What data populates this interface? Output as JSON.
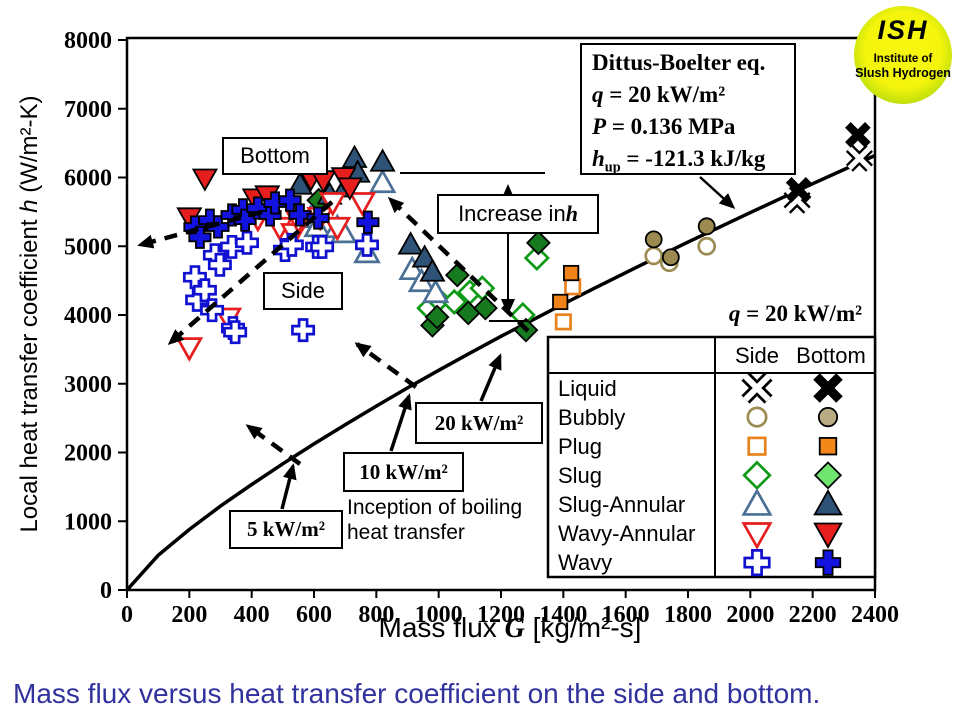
{
  "caption": {
    "text": "Mass flux versus heat transfer coefficient on the side and bottom."
  },
  "logo": {
    "acronym": "ISH",
    "line1": "Institute of",
    "line2": "Slush Hydrogen"
  },
  "axes": {
    "y_title_prefix": "Local heat transfer coefficient ",
    "y_title_var": "h",
    "y_title_suffix": " (W/m²-K)",
    "x_title_prefix": "Mass flux ",
    "x_title_var": "G",
    "x_title_suffix": " [kg/m²-s]",
    "y_ticks": [
      "0",
      "1000",
      "2000",
      "3000",
      "4000",
      "5000",
      "6000",
      "7000",
      "8000"
    ],
    "x_ticks": [
      "0",
      "200",
      "400",
      "600",
      "800",
      "1000",
      "1200",
      "1400",
      "1600",
      "1800",
      "2000",
      "2200",
      "2400"
    ]
  },
  "annotations": {
    "bottom_label": "Bottom",
    "side_label": "Side",
    "increase_prefix": "Increase in ",
    "increase_var": "h",
    "dittus_line1": "Dittus-Boelter eq.",
    "dittus_q_var": "q",
    "dittus_q_rest": " = 20 kW/m²",
    "dittus_p_var": "P",
    "dittus_p_rest": " = 0.136 MPa",
    "dittus_h_var": "h",
    "dittus_h_sub": "up",
    "dittus_h_rest": " = -121.3 kJ/kg",
    "q20_var": "q",
    "q20_rest": " = 20 kW/m²",
    "flux20": "20 kW/m²",
    "flux10": "10 kW/m²",
    "flux5": "5 kW/m²",
    "inception_line1": "Inception of boiling",
    "inception_line2": "heat transfer"
  },
  "legend": {
    "col_side": "Side",
    "col_bottom": "Bottom",
    "rows": [
      {
        "label": "Liquid",
        "shape": "x",
        "side": {
          "mode": "open",
          "color": "#000000"
        },
        "bottom": {
          "mode": "filled",
          "color": "#000000",
          "fill": "#000000"
        }
      },
      {
        "label": "Bubbly",
        "shape": "circle",
        "side": {
          "mode": "open",
          "color": "#9c8c52"
        },
        "bottom": {
          "mode": "filled",
          "color": "#9c8c52",
          "fill": "#b9ab84"
        }
      },
      {
        "label": "Plug",
        "shape": "square",
        "side": {
          "mode": "open",
          "color": "#e8821d"
        },
        "bottom": {
          "mode": "filled",
          "color": "#e8821d",
          "fill": "#f2881a"
        }
      },
      {
        "label": "Slug",
        "shape": "diamond",
        "side": {
          "mode": "open",
          "color": "#0e9a16"
        },
        "bottom": {
          "mode": "filled",
          "color": "#0e9a16",
          "fill": "#6fe56f"
        }
      },
      {
        "label": "Slug-Annular",
        "shape": "triangle-up",
        "side": {
          "mode": "open",
          "color": "#4a7096"
        },
        "bottom": {
          "mode": "filled",
          "color": "#4a7096",
          "fill": "#2e5377"
        }
      },
      {
        "label": "Wavy-Annular",
        "shape": "triangle-down",
        "side": {
          "mode": "open",
          "color": "#e61e1e"
        },
        "bottom": {
          "mode": "filled",
          "color": "#e61e1e",
          "fill": "#e61e1e"
        }
      },
      {
        "label": "Wavy",
        "shape": "cross",
        "side": {
          "mode": "open",
          "color": "#1010d0"
        },
        "bottom": {
          "mode": "filled",
          "color": "#1010d0",
          "fill": "#1313e0"
        }
      }
    ]
  },
  "colors": {
    "curve": "#000000",
    "caption": "#31319e",
    "wavy_blue": "#1010d0",
    "red": "#e61e1e",
    "slug_annular_open": "#4a7096",
    "slug_annular_filled": "#2e5377",
    "green_open": "#0e9a16",
    "green_filled": "#187a1f",
    "orange": "#e8821d",
    "tan": "#9c8c52",
    "logo_yellow": "#f4f40c",
    "logo_green": "#8cc70d"
  },
  "chart_data": {
    "type": "scatter",
    "title": "",
    "xlabel": "Mass flux G [kg/m²-s]",
    "ylabel": "Local heat transfer coefficient h (W/m²-K)",
    "xlim": [
      0,
      2400
    ],
    "ylim": [
      0,
      8000
    ],
    "grid": false,
    "legend_position": "inside lower right",
    "curve": {
      "name": "Dittus-Boelter eq. (q = 20 kW/m², P = 0.136 MPa, hup = -121.3 kJ/kg)",
      "points": [
        [
          0,
          0
        ],
        [
          100,
          505
        ],
        [
          200,
          880
        ],
        [
          300,
          1220
        ],
        [
          400,
          1535
        ],
        [
          500,
          1835
        ],
        [
          600,
          2125
        ],
        [
          700,
          2405
        ],
        [
          800,
          2675
        ],
        [
          900,
          2940
        ],
        [
          1000,
          3195
        ],
        [
          1100,
          3445
        ],
        [
          1200,
          3690
        ],
        [
          1300,
          3925
        ],
        [
          1400,
          4160
        ],
        [
          1500,
          4390
        ],
        [
          1600,
          4615
        ],
        [
          1700,
          4840
        ],
        [
          1800,
          5060
        ],
        [
          1900,
          5275
        ],
        [
          2000,
          5490
        ],
        [
          2100,
          5700
        ],
        [
          2200,
          5910
        ],
        [
          2300,
          6115
        ],
        [
          2400,
          6320
        ]
      ]
    },
    "series": [
      {
        "name": "liquid-side",
        "label": "Liquid (side)",
        "shape": "x",
        "mode": "open",
        "color": "#000000",
        "points": [
          [
            2150,
            5670
          ],
          [
            2350,
            6280
          ]
        ]
      },
      {
        "name": "liquid-bottom",
        "label": "Liquid (bottom)",
        "shape": "x",
        "mode": "filled",
        "color": "#000000",
        "fill": "#000000",
        "points": [
          [
            2155,
            5820
          ],
          [
            2345,
            6620
          ]
        ]
      },
      {
        "name": "bubbly-side",
        "label": "Bubbly (side)",
        "shape": "circle",
        "mode": "open",
        "color": "#9c8c52",
        "points": [
          [
            1690,
            4860
          ],
          [
            1740,
            4760
          ],
          [
            1860,
            5000
          ]
        ]
      },
      {
        "name": "bubbly-bottom",
        "label": "Bubbly (bottom)",
        "shape": "circle",
        "mode": "filled",
        "color": "#9c8c52",
        "fill": "#9c8a50",
        "points": [
          [
            1690,
            5100
          ],
          [
            1745,
            4840
          ],
          [
            1860,
            5290
          ]
        ]
      },
      {
        "name": "plug-side",
        "label": "Plug (side)",
        "shape": "square",
        "mode": "open",
        "color": "#e8821d",
        "points": [
          [
            1400,
            3900
          ],
          [
            1430,
            4410
          ]
        ]
      },
      {
        "name": "plug-bottom",
        "label": "Plug (bottom)",
        "shape": "square",
        "mode": "filled",
        "color": "#e8821d",
        "fill": "#ef8317",
        "points": [
          [
            1390,
            4190
          ],
          [
            1425,
            4610
          ]
        ]
      },
      {
        "name": "slug-side",
        "label": "Slug (side)",
        "shape": "diamond",
        "mode": "open",
        "color": "#0e9a16",
        "points": [
          [
            970,
            4100
          ],
          [
            1000,
            4220
          ],
          [
            1050,
            4190
          ],
          [
            1100,
            4330
          ],
          [
            1140,
            4390
          ],
          [
            1270,
            4000
          ],
          [
            1315,
            4830
          ]
        ]
      },
      {
        "name": "slug-bottom",
        "label": "Slug (bottom)",
        "shape": "diamond",
        "mode": "filled",
        "color": "#0e9a16",
        "fill": "#187a1f",
        "points": [
          [
            615,
            5670
          ],
          [
            980,
            3850
          ],
          [
            995,
            3970
          ],
          [
            1060,
            4580
          ],
          [
            1095,
            4030
          ],
          [
            1150,
            4100
          ],
          [
            1280,
            3780
          ],
          [
            1320,
            5050
          ]
        ]
      },
      {
        "name": "slug-annular-side",
        "label": "Slug-Annular (side)",
        "shape": "triangle-up",
        "mode": "open",
        "color": "#4a7096",
        "points": [
          [
            590,
            5410
          ],
          [
            610,
            5280
          ],
          [
            675,
            5265
          ],
          [
            695,
            5190
          ],
          [
            770,
            4900
          ],
          [
            820,
            5920
          ],
          [
            915,
            4655
          ],
          [
            945,
            4480
          ],
          [
            990,
            4320
          ]
        ]
      },
      {
        "name": "slug-annular-bottom",
        "label": "Slug-Annular (bottom)",
        "shape": "triangle-up",
        "mode": "filled",
        "color": "#4a7096",
        "fill": "#2e5377",
        "points": [
          [
            555,
            5890
          ],
          [
            650,
            5745
          ],
          [
            700,
            5850
          ],
          [
            730,
            6280
          ],
          [
            740,
            6065
          ],
          [
            820,
            6225
          ],
          [
            910,
            5020
          ],
          [
            955,
            4830
          ],
          [
            980,
            4625
          ]
        ]
      },
      {
        "name": "wavy-annular-side",
        "label": "Wavy-Annular (side)",
        "shape": "triangle-down",
        "mode": "open",
        "color": "#e61e1e",
        "points": [
          [
            200,
            3530
          ],
          [
            325,
            3960
          ],
          [
            420,
            5410
          ],
          [
            490,
            5280
          ],
          [
            535,
            5190
          ],
          [
            550,
            5380
          ],
          [
            620,
            5425
          ],
          [
            660,
            5640
          ],
          [
            675,
            5280
          ],
          [
            755,
            5640
          ]
        ]
      },
      {
        "name": "wavy-annular-bottom",
        "label": "Wavy-Annular (bottom)",
        "shape": "triangle-down",
        "mode": "filled",
        "color": "#e61e1e",
        "fill": "#e61e1e",
        "points": [
          [
            200,
            5425
          ],
          [
            250,
            5990
          ],
          [
            410,
            5700
          ],
          [
            450,
            5745
          ],
          [
            590,
            5990
          ],
          [
            630,
            5965
          ],
          [
            695,
            6010
          ],
          [
            715,
            5860
          ]
        ]
      },
      {
        "name": "wavy-side",
        "label": "Wavy (side)",
        "shape": "cross",
        "mode": "open",
        "color": "#1010d0",
        "points": [
          [
            218,
            4550
          ],
          [
            225,
            4220
          ],
          [
            250,
            4360
          ],
          [
            273,
            4070
          ],
          [
            282,
            4870
          ],
          [
            298,
            4730
          ],
          [
            337,
            4990
          ],
          [
            340,
            3810
          ],
          [
            347,
            3750
          ],
          [
            385,
            5050
          ],
          [
            507,
            4945
          ],
          [
            529,
            5020
          ],
          [
            565,
            3780
          ],
          [
            610,
            4990
          ],
          [
            626,
            4990
          ],
          [
            770,
            5020
          ]
        ]
      },
      {
        "name": "wavy-bottom",
        "label": "Wavy (bottom)",
        "shape": "cross",
        "mode": "filled",
        "color": "#1010d0",
        "fill": "#1313e0",
        "points": [
          [
            218,
            5280
          ],
          [
            234,
            5130
          ],
          [
            266,
            5380
          ],
          [
            292,
            5280
          ],
          [
            337,
            5455
          ],
          [
            372,
            5530
          ],
          [
            379,
            5380
          ],
          [
            420,
            5555
          ],
          [
            459,
            5455
          ],
          [
            475,
            5630
          ],
          [
            523,
            5670
          ],
          [
            555,
            5455
          ],
          [
            613,
            5410
          ],
          [
            773,
            5350
          ]
        ]
      }
    ]
  }
}
